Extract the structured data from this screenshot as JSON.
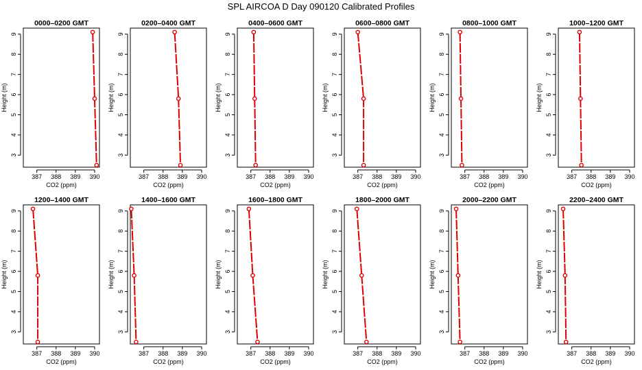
{
  "page": {
    "title": "SPL AIRCOA D  Day 090120  Calibrated Profiles"
  },
  "style": {
    "line_color": "#dd0000",
    "point_color": "#dd0000",
    "axis_color": "#000000"
  },
  "axes": {
    "xlabel": "CO2 (ppm)",
    "ylabel": "Height (m)",
    "xlim": [
      386.3,
      390.25
    ],
    "ylim": [
      2.4,
      9.3
    ],
    "xticks": [
      387,
      388,
      389,
      390
    ],
    "yticks": [
      3,
      4,
      5,
      6,
      7,
      8,
      9
    ]
  },
  "chart_data": [
    {
      "type": "line",
      "title": "0000–0200 GMT",
      "xlabel": "CO2 (ppm)",
      "ylabel": "Height (m)",
      "series": [
        {
          "x": [
            389.9,
            390.0,
            390.1
          ],
          "y": [
            9.1,
            5.8,
            2.5
          ]
        }
      ]
    },
    {
      "type": "line",
      "title": "0200–0400 GMT",
      "xlabel": "CO2 (ppm)",
      "ylabel": "Height (m)",
      "series": [
        {
          "x": [
            388.6,
            388.8,
            388.9
          ],
          "y": [
            9.1,
            5.8,
            2.5
          ]
        }
      ]
    },
    {
      "type": "line",
      "title": "0400–0600 GMT",
      "xlabel": "CO2 (ppm)",
      "ylabel": "Height (m)",
      "series": [
        {
          "x": [
            387.15,
            387.2,
            387.25
          ],
          "y": [
            9.1,
            5.8,
            2.5
          ]
        }
      ]
    },
    {
      "type": "line",
      "title": "0600–0800 GMT",
      "xlabel": "CO2 (ppm)",
      "ylabel": "Height (m)",
      "series": [
        {
          "x": [
            387.0,
            387.3,
            387.3
          ],
          "y": [
            9.1,
            5.8,
            2.5
          ]
        }
      ]
    },
    {
      "type": "line",
      "title": "0800–1000 GMT",
      "xlabel": "CO2 (ppm)",
      "ylabel": "Height (m)",
      "series": [
        {
          "x": [
            386.75,
            386.8,
            386.85
          ],
          "y": [
            9.1,
            5.8,
            2.5
          ]
        }
      ]
    },
    {
      "type": "line",
      "title": "1000–1200 GMT",
      "xlabel": "CO2 (ppm)",
      "ylabel": "Height (m)",
      "series": [
        {
          "x": [
            387.4,
            387.45,
            387.5
          ],
          "y": [
            9.1,
            5.8,
            2.5
          ]
        }
      ]
    },
    {
      "type": "line",
      "title": "1200–1400 GMT",
      "xlabel": "CO2 (ppm)",
      "ylabel": "Height (m)",
      "series": [
        {
          "x": [
            386.8,
            387.05,
            387.05
          ],
          "y": [
            9.1,
            5.8,
            2.5
          ]
        }
      ]
    },
    {
      "type": "line",
      "title": "1400–1600 GMT",
      "xlabel": "CO2 (ppm)",
      "ylabel": "Height (m)",
      "series": [
        {
          "x": [
            386.35,
            386.5,
            386.6
          ],
          "y": [
            9.1,
            5.8,
            2.5
          ]
        }
      ]
    },
    {
      "type": "line",
      "title": "1600–1800 GMT",
      "xlabel": "CO2 (ppm)",
      "ylabel": "Height (m)",
      "series": [
        {
          "x": [
            386.9,
            387.1,
            387.35
          ],
          "y": [
            9.1,
            5.8,
            2.5
          ]
        }
      ]
    },
    {
      "type": "line",
      "title": "1800–2000 GMT",
      "xlabel": "CO2 (ppm)",
      "ylabel": "Height (m)",
      "series": [
        {
          "x": [
            386.95,
            387.2,
            387.45
          ],
          "y": [
            9.1,
            5.8,
            2.5
          ]
        }
      ]
    },
    {
      "type": "line",
      "title": "2000–2200 GMT",
      "xlabel": "CO2 (ppm)",
      "ylabel": "Height (m)",
      "series": [
        {
          "x": [
            386.55,
            386.65,
            386.75
          ],
          "y": [
            9.1,
            5.8,
            2.5
          ]
        }
      ]
    },
    {
      "type": "line",
      "title": "2200–2400 GMT",
      "xlabel": "CO2 (ppm)",
      "ylabel": "Height (m)",
      "series": [
        {
          "x": [
            386.55,
            386.65,
            386.7
          ],
          "y": [
            9.1,
            5.8,
            2.5
          ]
        }
      ]
    }
  ]
}
